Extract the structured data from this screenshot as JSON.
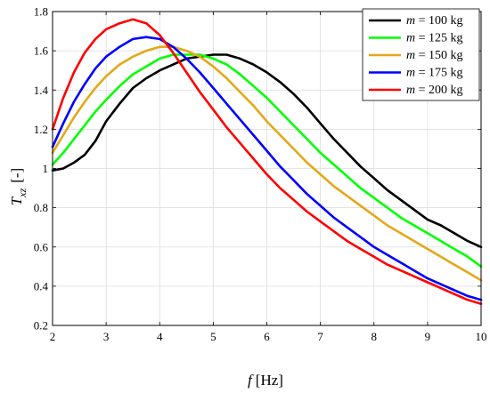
{
  "chart_data": {
    "type": "line",
    "xlabel": {
      "symbol": "f",
      "unit": "[Hz]"
    },
    "ylabel": {
      "symbol": "T",
      "subscript": "xz",
      "unit": "[-]"
    },
    "xlim": [
      2,
      10
    ],
    "ylim": [
      0.2,
      1.8
    ],
    "xticks": [
      2,
      3,
      4,
      5,
      6,
      7,
      8,
      9,
      10
    ],
    "yticks": [
      0.2,
      0.4,
      0.6,
      0.8,
      1.0,
      1.2,
      1.4,
      1.6,
      1.8
    ],
    "ytick_labels": [
      "0.2",
      "0.4",
      "0.6",
      "0.8",
      "1",
      "1.2",
      "1.4",
      "1.6",
      "1.8"
    ],
    "grid": true,
    "legend_position": "top-right",
    "legend_var": "m",
    "series": [
      {
        "name": "= 100 kg",
        "color": "#000000",
        "x": [
          2.0,
          2.2,
          2.4,
          2.6,
          2.8,
          3.0,
          3.25,
          3.5,
          3.75,
          4.0,
          4.25,
          4.5,
          4.75,
          5.0,
          5.25,
          5.5,
          5.75,
          6.0,
          6.25,
          6.5,
          6.75,
          7.0,
          7.25,
          7.5,
          7.75,
          8.0,
          8.25,
          8.5,
          8.75,
          9.0,
          9.25,
          9.5,
          9.75,
          10.0
        ],
        "y": [
          0.99,
          1.0,
          1.03,
          1.07,
          1.14,
          1.24,
          1.33,
          1.41,
          1.46,
          1.5,
          1.53,
          1.56,
          1.57,
          1.58,
          1.58,
          1.56,
          1.53,
          1.49,
          1.44,
          1.38,
          1.31,
          1.23,
          1.15,
          1.08,
          1.01,
          0.95,
          0.89,
          0.84,
          0.79,
          0.74,
          0.71,
          0.67,
          0.63,
          0.6
        ]
      },
      {
        "name": "= 125 kg",
        "color": "#00ff00",
        "x": [
          2.0,
          2.2,
          2.4,
          2.6,
          2.8,
          3.0,
          3.25,
          3.5,
          3.75,
          4.0,
          4.25,
          4.5,
          4.75,
          5.0,
          5.25,
          5.5,
          5.75,
          6.0,
          6.25,
          6.5,
          6.75,
          7.0,
          7.25,
          7.5,
          7.75,
          8.0,
          8.25,
          8.5,
          8.75,
          9.0,
          9.25,
          9.5,
          9.75,
          10.0
        ],
        "y": [
          1.02,
          1.08,
          1.15,
          1.22,
          1.29,
          1.35,
          1.42,
          1.48,
          1.52,
          1.56,
          1.58,
          1.58,
          1.58,
          1.56,
          1.53,
          1.48,
          1.42,
          1.36,
          1.29,
          1.22,
          1.15,
          1.08,
          1.02,
          0.96,
          0.9,
          0.85,
          0.8,
          0.75,
          0.71,
          0.67,
          0.63,
          0.59,
          0.55,
          0.5
        ]
      },
      {
        "name": "= 150 kg",
        "color": "#e3a818",
        "x": [
          2.0,
          2.2,
          2.4,
          2.6,
          2.8,
          3.0,
          3.25,
          3.5,
          3.75,
          4.0,
          4.25,
          4.5,
          4.75,
          5.0,
          5.25,
          5.5,
          5.75,
          6.0,
          6.25,
          6.5,
          6.75,
          7.0,
          7.25,
          7.5,
          7.75,
          8.0,
          8.25,
          8.5,
          8.75,
          9.0,
          9.25,
          9.5,
          9.75,
          10.0
        ],
        "y": [
          1.08,
          1.17,
          1.26,
          1.34,
          1.41,
          1.47,
          1.53,
          1.57,
          1.6,
          1.62,
          1.62,
          1.6,
          1.57,
          1.52,
          1.46,
          1.39,
          1.32,
          1.24,
          1.17,
          1.1,
          1.03,
          0.97,
          0.91,
          0.86,
          0.81,
          0.76,
          0.71,
          0.67,
          0.63,
          0.59,
          0.55,
          0.51,
          0.47,
          0.43
        ]
      },
      {
        "name": "= 175 kg",
        "color": "#0000ff",
        "x": [
          2.0,
          2.2,
          2.4,
          2.6,
          2.8,
          3.0,
          3.25,
          3.5,
          3.75,
          4.0,
          4.25,
          4.5,
          4.75,
          5.0,
          5.25,
          5.5,
          5.75,
          6.0,
          6.25,
          6.5,
          6.75,
          7.0,
          7.25,
          7.5,
          7.75,
          8.0,
          8.25,
          8.5,
          8.75,
          9.0,
          9.25,
          9.5,
          9.75,
          10.0
        ],
        "y": [
          1.11,
          1.23,
          1.34,
          1.43,
          1.51,
          1.57,
          1.62,
          1.66,
          1.67,
          1.66,
          1.62,
          1.56,
          1.49,
          1.41,
          1.33,
          1.25,
          1.17,
          1.09,
          1.01,
          0.94,
          0.87,
          0.81,
          0.75,
          0.7,
          0.65,
          0.6,
          0.56,
          0.52,
          0.48,
          0.44,
          0.41,
          0.38,
          0.35,
          0.33
        ]
      },
      {
        "name": "= 200 kg",
        "color": "#ff0000",
        "x": [
          2.0,
          2.2,
          2.4,
          2.6,
          2.8,
          3.0,
          3.25,
          3.5,
          3.75,
          4.0,
          4.25,
          4.5,
          4.75,
          5.0,
          5.25,
          5.5,
          5.75,
          6.0,
          6.25,
          6.5,
          6.75,
          7.0,
          7.25,
          7.5,
          7.75,
          8.0,
          8.25,
          8.5,
          8.75,
          9.0,
          9.25,
          9.5,
          9.75,
          10.0
        ],
        "y": [
          1.2,
          1.36,
          1.49,
          1.59,
          1.66,
          1.71,
          1.74,
          1.76,
          1.74,
          1.68,
          1.59,
          1.49,
          1.39,
          1.3,
          1.21,
          1.13,
          1.05,
          0.97,
          0.9,
          0.84,
          0.78,
          0.73,
          0.68,
          0.63,
          0.59,
          0.55,
          0.51,
          0.48,
          0.45,
          0.42,
          0.39,
          0.36,
          0.33,
          0.31
        ]
      }
    ]
  }
}
